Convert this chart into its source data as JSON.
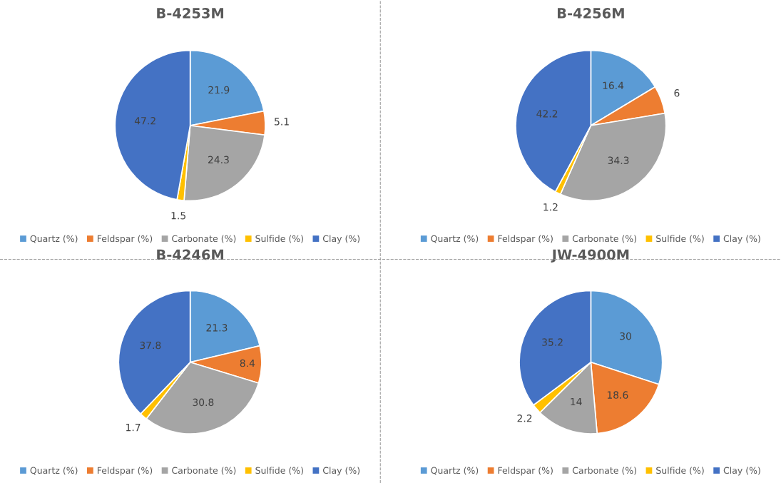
{
  "chart_data": [
    {
      "type": "pie",
      "title": "B-4253M",
      "categories": [
        "Quartz (%)",
        "Feldspar (%)",
        "Carbonate (%)",
        "Sulfide (%)",
        "Clay (%)"
      ],
      "values": [
        21.9,
        5.1,
        24.3,
        1.5,
        47.2
      ],
      "colors": [
        "#5b9bd5",
        "#ed7d31",
        "#a5a5a5",
        "#ffc000",
        "#4472c4"
      ],
      "data_labels": true,
      "legend": "bottom"
    },
    {
      "type": "pie",
      "title": "B-4256M",
      "categories": [
        "Quartz (%)",
        "Feldspar (%)",
        "Carbonate (%)",
        "Sulfide (%)",
        "Clay (%)"
      ],
      "values": [
        16.4,
        6,
        34.3,
        1.2,
        42.2
      ],
      "colors": [
        "#5b9bd5",
        "#ed7d31",
        "#a5a5a5",
        "#ffc000",
        "#4472c4"
      ],
      "data_labels": true,
      "legend": "bottom"
    },
    {
      "type": "pie",
      "title": "B-4246M",
      "categories": [
        "Quartz (%)",
        "Feldspar (%)",
        "Carbonate (%)",
        "Sulfide (%)",
        "Clay (%)"
      ],
      "values": [
        21.3,
        8.4,
        30.8,
        1.7,
        37.8
      ],
      "colors": [
        "#5b9bd5",
        "#ed7d31",
        "#a5a5a5",
        "#ffc000",
        "#4472c4"
      ],
      "data_labels": true,
      "legend": "bottom"
    },
    {
      "type": "pie",
      "title": "JW-4900M",
      "categories": [
        "Quartz (%)",
        "Feldspar (%)",
        "Carbonate (%)",
        "Sulfide (%)",
        "Clay (%)"
      ],
      "values": [
        30,
        18.6,
        14,
        2.2,
        35.2
      ],
      "colors": [
        "#5b9bd5",
        "#ed7d31",
        "#a5a5a5",
        "#ffc000",
        "#4472c4"
      ],
      "data_labels": true,
      "legend": "bottom"
    }
  ]
}
